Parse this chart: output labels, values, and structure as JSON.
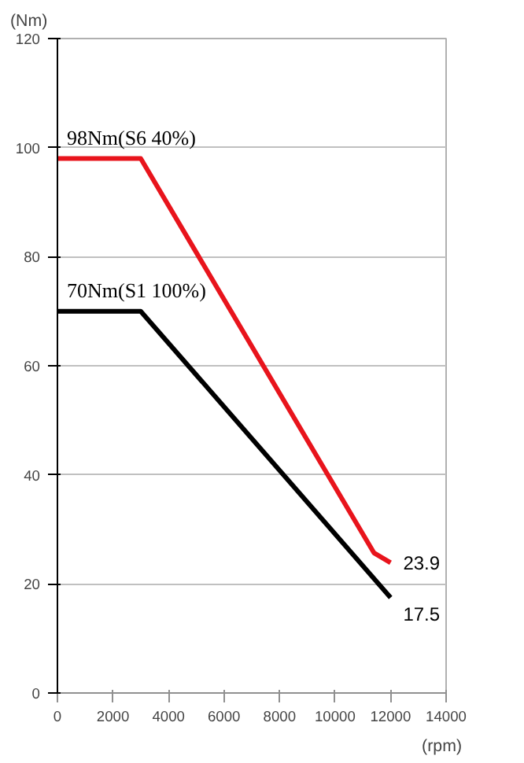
{
  "chart_data": {
    "type": "line",
    "xlabel": "(rpm)",
    "ylabel": "(Nm)",
    "xlim": [
      0,
      14000
    ],
    "xticks": [
      0,
      2000,
      4000,
      6000,
      8000,
      10000,
      12000,
      14000
    ],
    "ylim": [
      0,
      120
    ],
    "yticks": [
      0,
      20,
      40,
      60,
      80,
      100,
      120
    ],
    "grid": "y",
    "marker": "none",
    "line_style": "solid",
    "series": [
      {
        "name": "98Nm(S6 40%)",
        "color": "#e8141c",
        "x": [
          0,
          3000,
          11400,
          12000
        ],
        "values": [
          98,
          98,
          25.7,
          23.9
        ],
        "value_labels": [
          null,
          null,
          null,
          "23.9"
        ]
      },
      {
        "name": "70Nm(S1 100%)",
        "color": "#000000",
        "x": [
          0,
          3000,
          12000
        ],
        "values": [
          70,
          70,
          17.5
        ],
        "value_labels": [
          null,
          null,
          "17.5"
        ]
      }
    ]
  }
}
